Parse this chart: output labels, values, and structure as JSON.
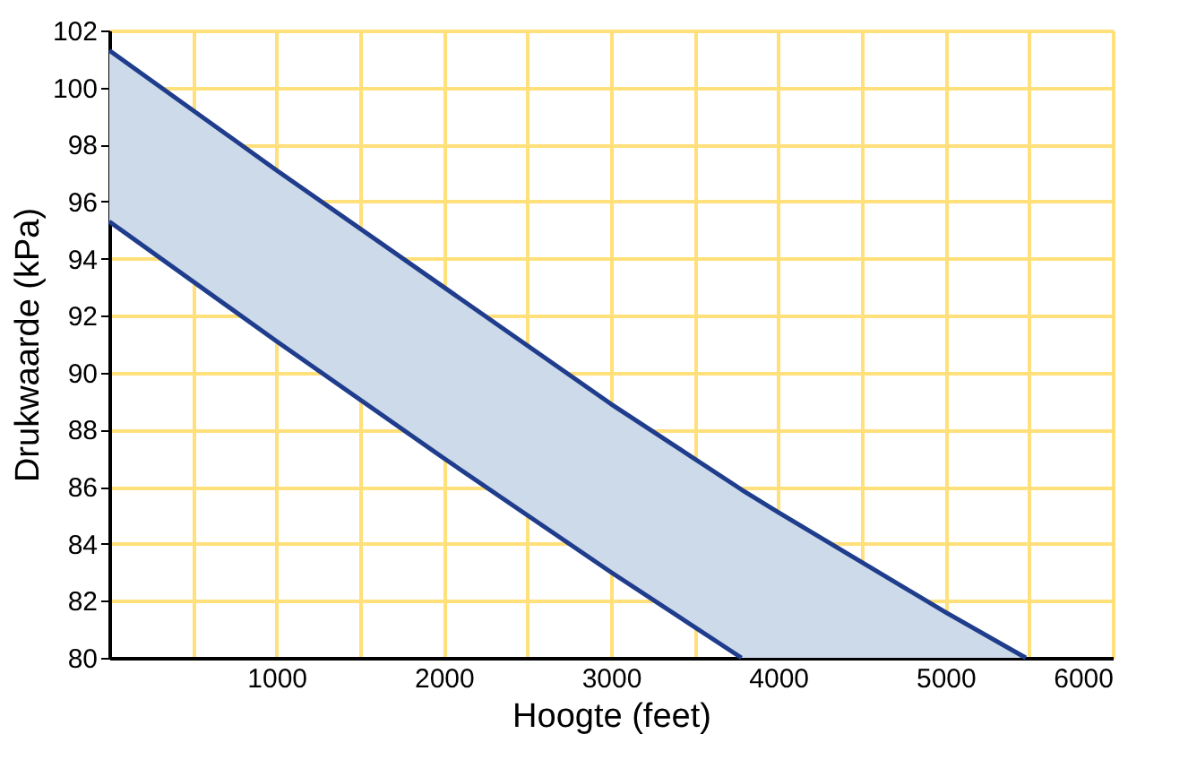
{
  "chart_data": {
    "type": "line",
    "xlabel": "Hoogte (feet)",
    "ylabel": "Drukwaarde (kPa)",
    "xlim": [
      0,
      6000
    ],
    "ylim": [
      80,
      102
    ],
    "xticks": [
      {
        "value": 500,
        "label": null
      },
      1000,
      {
        "value": 1500,
        "label": null
      },
      2000,
      {
        "value": 2500,
        "label": null
      },
      3000,
      {
        "value": 3500,
        "label": null
      },
      4000,
      {
        "value": 4500,
        "label": null
      },
      5000,
      {
        "value": 5500,
        "label": null
      },
      6000
    ],
    "yticks": [
      80,
      82,
      84,
      86,
      88,
      90,
      92,
      94,
      96,
      98,
      100,
      102
    ],
    "grid": true,
    "marker": "none",
    "line_style": "solid",
    "series": [
      {
        "color": "#1f3d8c",
        "x": [
          0,
          1000,
          2000,
          3000,
          3780,
          4000,
          5000,
          5480
        ],
        "values": [
          101.3,
          97.1,
          93.0,
          88.9,
          85.9,
          85.1,
          81.6,
          80.0
        ],
        "lower": [
          95.3,
          91.1,
          87.0,
          83.0,
          80.0,
          80.0,
          80.0,
          80.0
        ],
        "upper": [
          101.3,
          97.1,
          93.0,
          88.9,
          85.9,
          85.1,
          81.6,
          80.0
        ]
      },
      {
        "color": "#1f3d8c",
        "x": [
          0,
          1000,
          2000,
          3000,
          3780
        ],
        "values": [
          95.3,
          91.1,
          87.0,
          83.0,
          80.0
        ]
      }
    ]
  }
}
